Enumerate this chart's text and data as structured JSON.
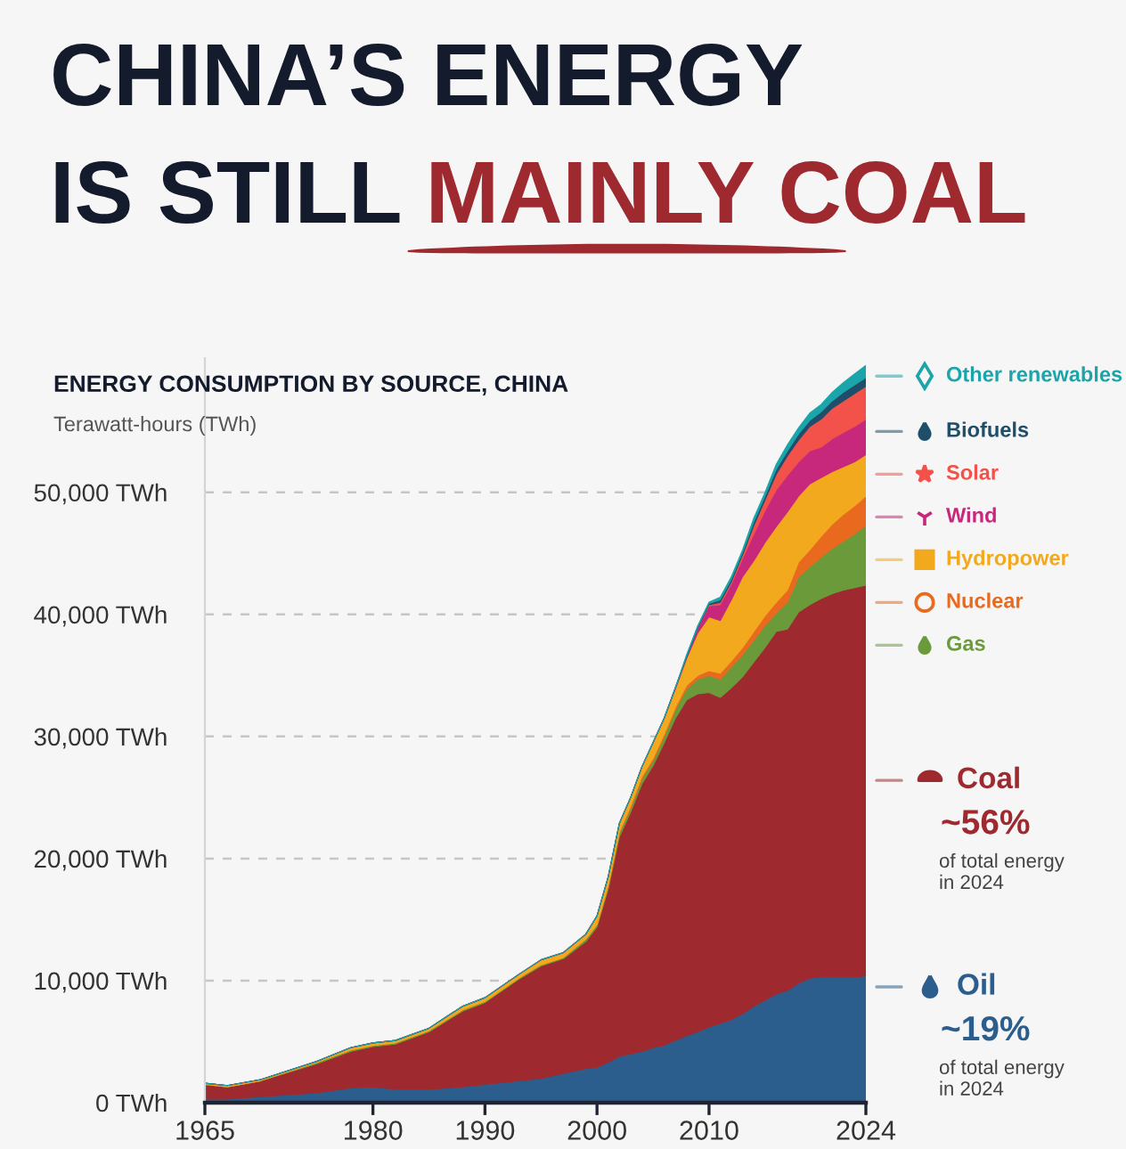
{
  "chart_data": {
    "type": "area",
    "stacked": true,
    "title": "CHINA’S ENERGY IS STILL MAINLY COAL",
    "subtitle": "ENERGY CONSUMPTION BY SOURCE, CHINA",
    "ylabel": "Terawatt-hours (TWh)",
    "x": [
      1965,
      1967,
      1970,
      1975,
      1978,
      1980,
      1982,
      1985,
      1988,
      1990,
      1993,
      1995,
      1997,
      1999,
      2000,
      2001,
      2002,
      2003,
      2004,
      2005,
      2006,
      2007,
      2008,
      2009,
      2010,
      2011,
      2012,
      2013,
      2014,
      2015,
      2016,
      2017,
      2018,
      2019,
      2020,
      2021,
      2022,
      2023,
      2024
    ],
    "xlim": [
      1965,
      2024
    ],
    "xticks": [
      1965,
      1980,
      1990,
      2000,
      2010,
      2024
    ],
    "ylim": [
      0,
      61000
    ],
    "yticks": [
      {
        "value": 0,
        "label": "0 TWh"
      },
      {
        "value": 10000,
        "label": "10,000 TWh"
      },
      {
        "value": 20000,
        "label": "20,000 TWh"
      },
      {
        "value": 30000,
        "label": "30,000 TWh"
      },
      {
        "value": 40000,
        "label": "40,000 TWh"
      },
      {
        "value": 50000,
        "label": "50,000 TWh"
      }
    ],
    "grid": "y",
    "legend": "right",
    "series": [
      {
        "name": "Oil",
        "color": "#2c5e8d",
        "values": [
          300,
          300,
          500,
          800,
          1200,
          1300,
          1100,
          1100,
          1300,
          1500,
          1800,
          2000,
          2400,
          2800,
          2900,
          3300,
          3800,
          4000,
          4200,
          4500,
          4700,
          5100,
          5500,
          5800,
          6200,
          6500,
          6800,
          7300,
          7900,
          8400,
          8900,
          9200,
          9800,
          10200,
          10300,
          10300,
          10300,
          10300,
          10400
        ]
      },
      {
        "name": "Coal",
        "color": "#9e2a2f",
        "values": [
          1200,
          1000,
          1300,
          2400,
          3000,
          3300,
          3700,
          4700,
          6200,
          6700,
          8300,
          9200,
          9400,
          10400,
          11500,
          14200,
          18000,
          19800,
          21900,
          23100,
          24800,
          26400,
          27500,
          27700,
          27400,
          26700,
          27200,
          27600,
          28200,
          28900,
          29700,
          29600,
          30400,
          30600,
          31000,
          31400,
          31700,
          31900,
          32000
        ]
      },
      {
        "name": "Gas",
        "color": "#6b9a3b",
        "values": [
          0,
          0,
          0,
          100,
          100,
          100,
          100,
          100,
          100,
          100,
          100,
          100,
          100,
          200,
          200,
          200,
          300,
          300,
          400,
          400,
          500,
          700,
          900,
          1200,
          1400,
          1500,
          1700,
          1800,
          1800,
          1800,
          1500,
          2200,
          2900,
          3100,
          3400,
          3700,
          4000,
          4400,
          4900
        ]
      },
      {
        "name": "Nuclear",
        "color": "#e96a1f",
        "values": [
          0,
          0,
          0,
          0,
          0,
          0,
          0,
          0,
          0,
          0,
          0,
          0,
          0,
          0,
          0,
          100,
          100,
          200,
          200,
          200,
          200,
          200,
          300,
          300,
          400,
          500,
          500,
          600,
          700,
          800,
          900,
          1000,
          1200,
          1400,
          1700,
          2000,
          2200,
          2300,
          2400
        ]
      },
      {
        "name": "Hydropower",
        "color": "#f2a91e",
        "values": [
          100,
          100,
          100,
          100,
          200,
          200,
          200,
          200,
          300,
          300,
          300,
          400,
          400,
          400,
          700,
          700,
          700,
          700,
          800,
          1300,
          1300,
          1500,
          2200,
          3500,
          4400,
          4300,
          5000,
          5800,
          5800,
          6000,
          6200,
          6400,
          5400,
          5400,
          4800,
          4300,
          3900,
          3600,
          3400
        ]
      },
      {
        "name": "Wind",
        "color": "#c7287c",
        "values": [
          0,
          0,
          0,
          0,
          0,
          0,
          0,
          0,
          0,
          0,
          0,
          0,
          0,
          0,
          0,
          0,
          0,
          0,
          0,
          0,
          0,
          100,
          100,
          400,
          900,
          1300,
          1300,
          1500,
          2200,
          2600,
          3000,
          3000,
          2800,
          2700,
          2500,
          2700,
          2800,
          2900,
          2900
        ]
      },
      {
        "name": "Solar",
        "color": "#f2524a",
        "values": [
          0,
          0,
          0,
          0,
          0,
          0,
          0,
          0,
          0,
          0,
          0,
          0,
          0,
          0,
          0,
          0,
          0,
          0,
          0,
          0,
          0,
          0,
          0,
          0,
          100,
          200,
          200,
          300,
          700,
          900,
          1300,
          1600,
          1800,
          2000,
          2300,
          2500,
          2600,
          2700,
          2700
        ]
      },
      {
        "name": "Biofuels",
        "color": "#1f4e6a",
        "values": [
          0,
          0,
          0,
          0,
          0,
          0,
          0,
          0,
          0,
          0,
          0,
          0,
          0,
          0,
          0,
          0,
          0,
          0,
          0,
          0,
          0,
          0,
          100,
          100,
          100,
          200,
          200,
          200,
          300,
          300,
          400,
          400,
          500,
          500,
          600,
          600,
          700,
          700,
          700
        ]
      },
      {
        "name": "Other renewables",
        "color": "#1ba5aa",
        "values": [
          0,
          0,
          0,
          0,
          0,
          0,
          0,
          0,
          0,
          0,
          0,
          0,
          0,
          0,
          0,
          0,
          0,
          0,
          0,
          0,
          0,
          0,
          100,
          100,
          100,
          200,
          200,
          200,
          300,
          300,
          400,
          500,
          500,
          600,
          600,
          700,
          800,
          900,
          1000
        ]
      }
    ],
    "annotations": [
      "~56%",
      "of total energy\nin 2024",
      "~19%",
      "of total energy\nin 2024"
    ]
  }
}
